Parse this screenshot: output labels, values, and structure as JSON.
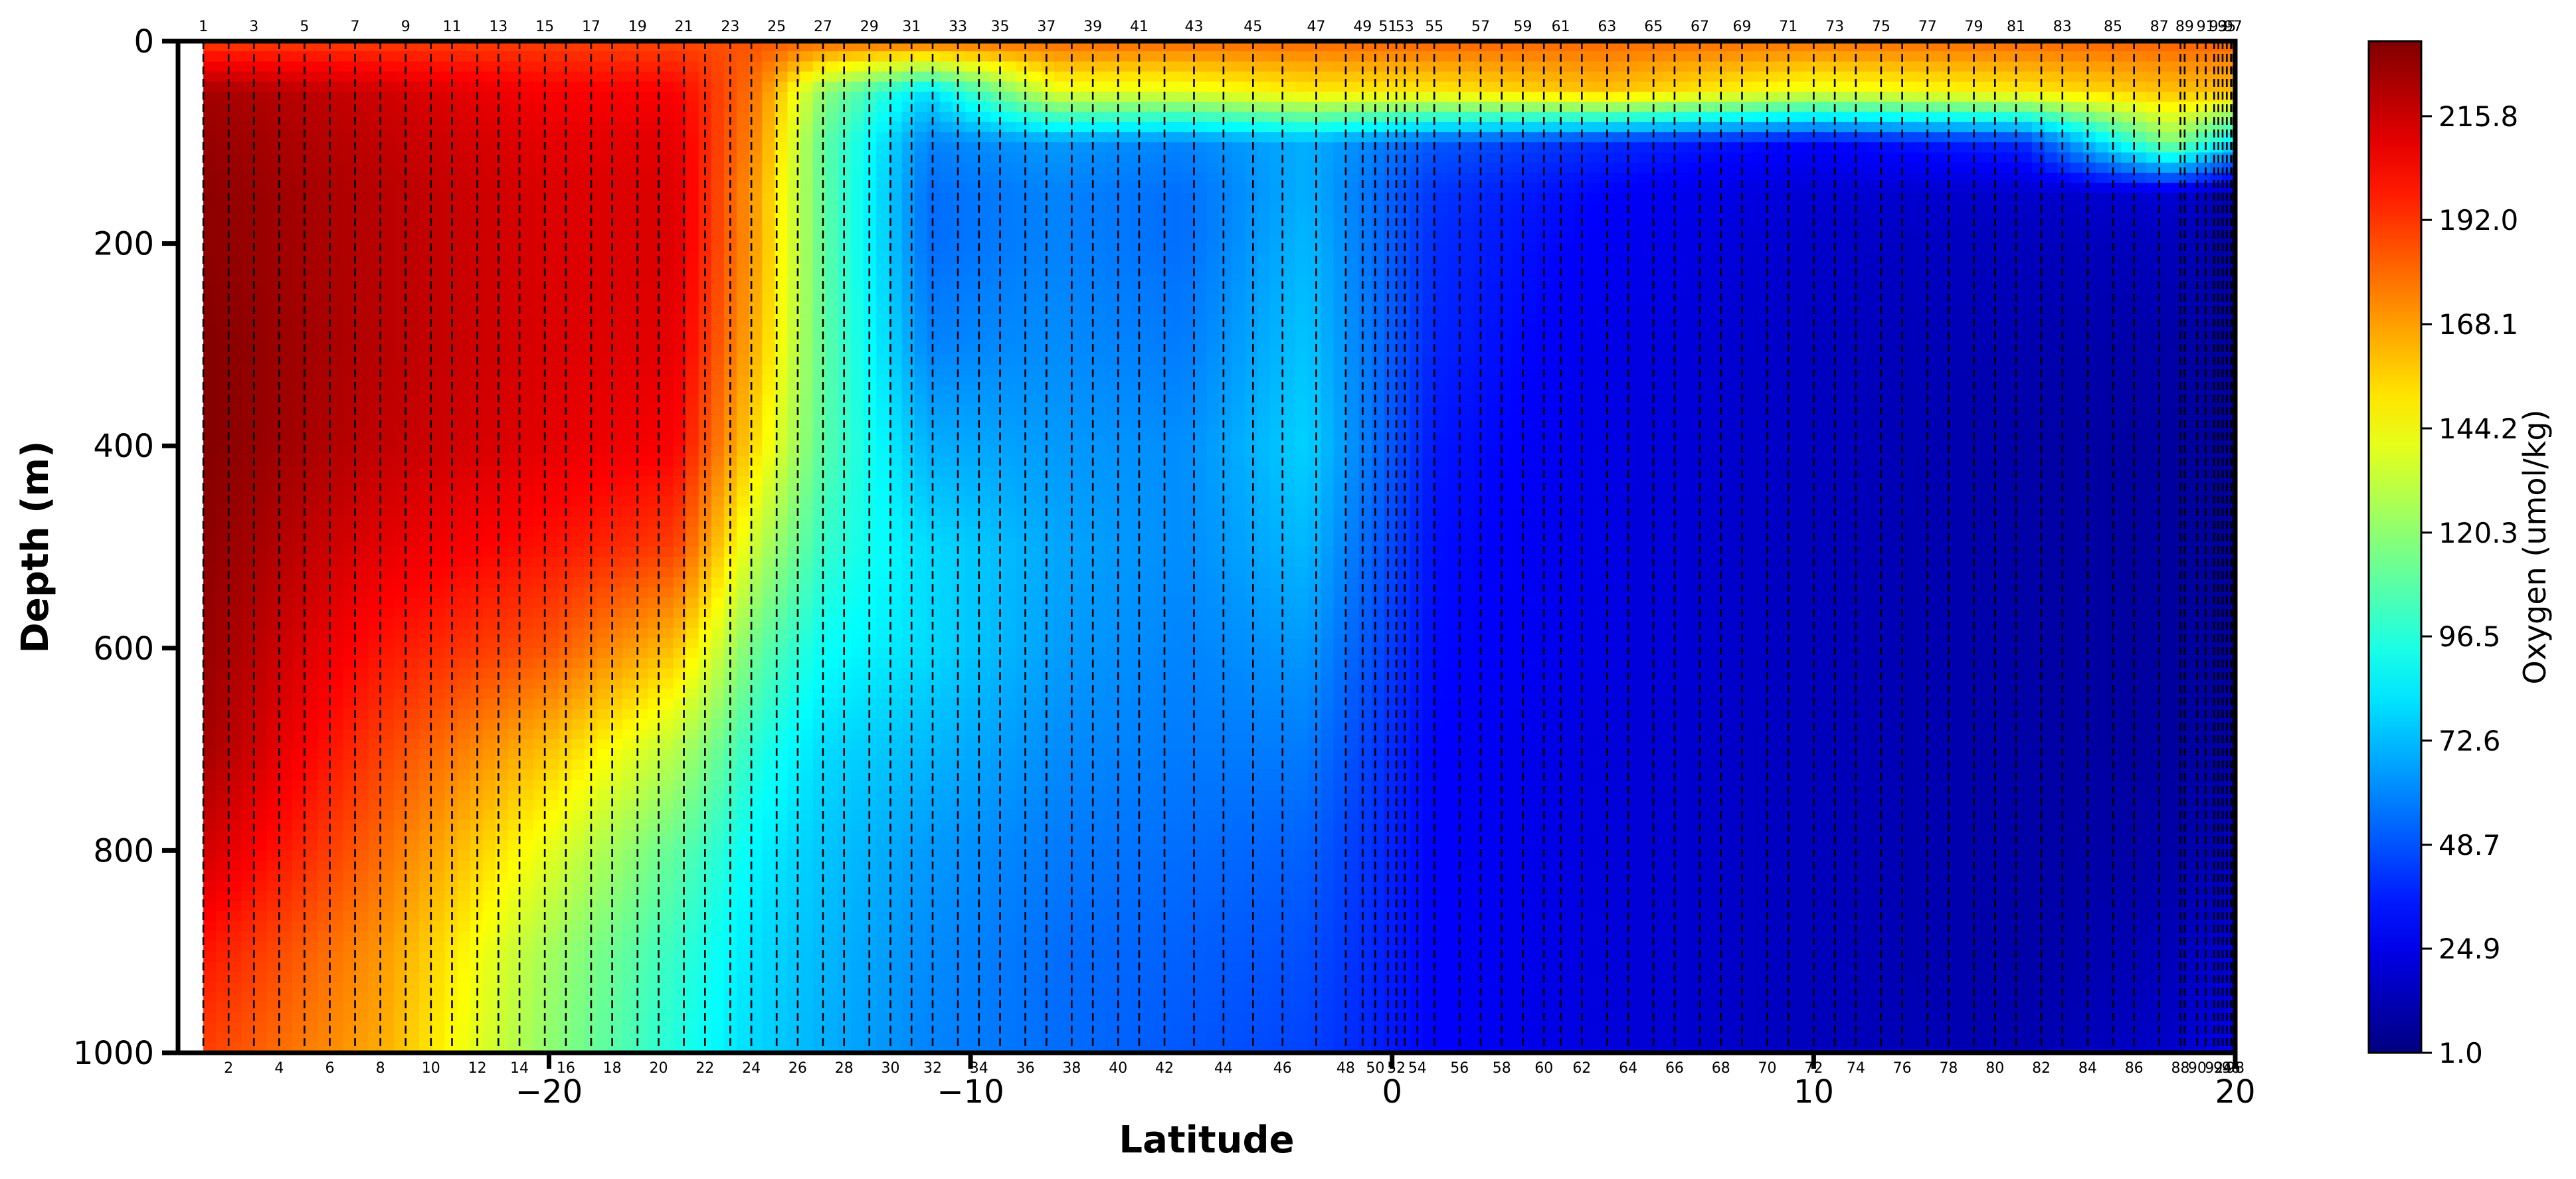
{
  "chart_data": {
    "type": "heatmap",
    "title": "",
    "xlabel": "Latitude",
    "ylabel": "Depth (m)",
    "xlim": [
      -28.8,
      20
    ],
    "ylim": [
      1000,
      0
    ],
    "y_inverted": true,
    "xticks": [
      -20,
      -10,
      0,
      10,
      20
    ],
    "xtick_labels": [
      "−20",
      "−10",
      "0",
      "10",
      "20"
    ],
    "yticks": [
      0,
      200,
      400,
      600,
      800,
      1000
    ],
    "ytick_labels": [
      "0",
      "200",
      "400",
      "600",
      "800",
      "1000"
    ],
    "colorbar": {
      "label": "Oxygen (umol/kg)",
      "colormap": "jet",
      "min": 1.0,
      "max": 233.0,
      "ticks": [
        1.0,
        24.9,
        48.7,
        72.6,
        96.5,
        120.3,
        144.2,
        168.1,
        192.0,
        215.8
      ],
      "tick_labels": [
        "1.0",
        "24.9",
        "48.7",
        "72.6",
        "96.5",
        "120.3",
        "144.2",
        "168.1",
        "192.0",
        "215.8"
      ]
    },
    "stations": {
      "count": 98,
      "first_lat": -28.2,
      "last_lat": 20.0,
      "lats": [
        -28.2,
        -27.6,
        -27.0,
        -26.4,
        -25.8,
        -25.2,
        -24.6,
        -24.0,
        -23.4,
        -22.8,
        -22.3,
        -21.7,
        -21.2,
        -20.7,
        -20.1,
        -19.6,
        -19.0,
        -18.5,
        -17.9,
        -17.4,
        -16.8,
        -16.3,
        -15.7,
        -15.2,
        -14.6,
        -14.1,
        -13.5,
        -13.0,
        -12.4,
        -11.9,
        -11.4,
        -10.9,
        -10.3,
        -9.8,
        -9.3,
        -8.7,
        -8.2,
        -7.6,
        -7.1,
        -6.5,
        -6.0,
        -5.4,
        -4.7,
        -4.0,
        -3.3,
        -2.6,
        -1.8,
        -1.1,
        -0.7,
        -0.4,
        -0.1,
        0.1,
        0.3,
        0.6,
        1.0,
        1.6,
        2.1,
        2.6,
        3.1,
        3.6,
        4.0,
        4.5,
        5.1,
        5.6,
        6.2,
        6.7,
        7.3,
        7.8,
        8.3,
        8.9,
        9.4,
        10.0,
        10.5,
        11.0,
        11.6,
        12.1,
        12.7,
        13.2,
        13.8,
        14.3,
        14.8,
        15.4,
        15.9,
        16.5,
        17.1,
        17.6,
        18.2,
        18.7,
        18.8,
        19.1,
        19.3,
        19.5,
        19.6,
        19.7,
        19.8,
        19.9,
        19.95,
        20.0
      ]
    },
    "depth_levels": [
      0,
      50,
      100,
      150,
      200,
      300,
      400,
      500,
      600,
      700,
      800,
      900,
      1000
    ],
    "oxygen_profiles": [
      {
        "lat": -28.2,
        "values": [
          190,
          225,
          228,
          230,
          230,
          232,
          232,
          230,
          228,
          225,
          215,
          200,
          190
        ]
      },
      {
        "lat": -24.0,
        "values": [
          190,
          215,
          218,
          220,
          220,
          220,
          218,
          210,
          200,
          190,
          180,
          170,
          165
        ]
      },
      {
        "lat": -20.0,
        "values": [
          190,
          205,
          210,
          212,
          212,
          212,
          210,
          200,
          185,
          160,
          140,
          125,
          120
        ]
      },
      {
        "lat": -17.0,
        "values": [
          188,
          205,
          210,
          212,
          212,
          210,
          205,
          190,
          160,
          130,
          110,
          100,
          95
        ]
      },
      {
        "lat": -15.0,
        "values": [
          185,
          175,
          170,
          165,
          165,
          160,
          150,
          130,
          110,
          95,
          85,
          80,
          78
        ]
      },
      {
        "lat": -13.5,
        "values": [
          180,
          120,
          110,
          110,
          110,
          110,
          108,
          100,
          90,
          80,
          75,
          72,
          70
        ]
      },
      {
        "lat": -11.0,
        "values": [
          180,
          80,
          60,
          55,
          55,
          60,
          70,
          80,
          80,
          72,
          65,
          62,
          60
        ]
      },
      {
        "lat": -8.0,
        "values": [
          180,
          140,
          65,
          60,
          60,
          62,
          65,
          68,
          66,
          62,
          58,
          55,
          55
        ]
      },
      {
        "lat": -5.0,
        "values": [
          180,
          140,
          60,
          55,
          55,
          58,
          62,
          62,
          60,
          58,
          55,
          52,
          50
        ]
      },
      {
        "lat": -2.0,
        "values": [
          180,
          150,
          70,
          70,
          72,
          75,
          78,
          72,
          65,
          58,
          52,
          48,
          45
        ]
      },
      {
        "lat": 1.0,
        "values": [
          182,
          150,
          50,
          42,
          40,
          38,
          35,
          33,
          32,
          30,
          30,
          30,
          30
        ]
      },
      {
        "lat": 5.0,
        "values": [
          180,
          160,
          40,
          30,
          28,
          25,
          24,
          24,
          24,
          22,
          22,
          22,
          22
        ]
      },
      {
        "lat": 10.0,
        "values": [
          178,
          140,
          30,
          20,
          18,
          16,
          16,
          15,
          15,
          15,
          15,
          15,
          15
        ]
      },
      {
        "lat": 15.0,
        "values": [
          180,
          150,
          40,
          18,
          15,
          12,
          10,
          10,
          10,
          10,
          10,
          10,
          12
        ]
      },
      {
        "lat": 18.5,
        "values": [
          182,
          160,
          120,
          20,
          15,
          10,
          8,
          8,
          8,
          8,
          10,
          14,
          18
        ]
      },
      {
        "lat": 20.0,
        "values": [
          182,
          160,
          80,
          12,
          10,
          8,
          7,
          7,
          8,
          10,
          14,
          20,
          25
        ]
      }
    ]
  }
}
